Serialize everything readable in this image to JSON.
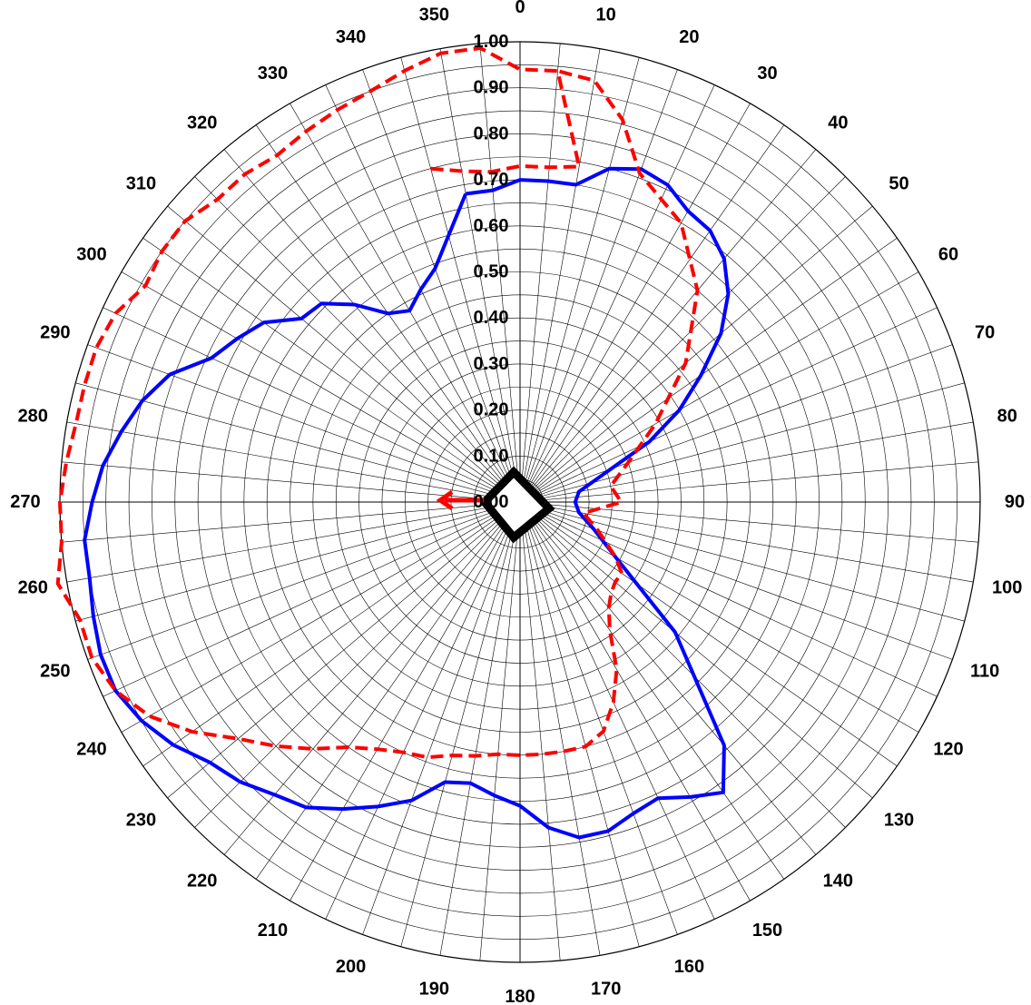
{
  "chart_data": {
    "type": "polar-line",
    "direction": "clockwise",
    "zero_angle": "top",
    "angle_step": 5,
    "angle_labels": [
      "0",
      "10",
      "20",
      "30",
      "40",
      "50",
      "60",
      "70",
      "80",
      "90",
      "100",
      "110",
      "120",
      "130",
      "140",
      "150",
      "160",
      "170",
      "180",
      "190",
      "200",
      "210",
      "220",
      "230",
      "240",
      "250",
      "260",
      "270",
      "280",
      "290",
      "300",
      "310",
      "320",
      "330",
      "340",
      "350"
    ],
    "radial_range": [
      0,
      1.0
    ],
    "radial_ticks": [
      "0.00",
      "0.10",
      "0.20",
      "0.30",
      "0.40",
      "0.50",
      "0.60",
      "0.70",
      "0.80",
      "0.90",
      "1.00"
    ],
    "grid": true,
    "series": [
      {
        "color": "#0000ff",
        "style": "solid",
        "points": [
          {
            "angle": 350,
            "r": 0.68
          },
          {
            "angle": 355,
            "r": 0.68
          },
          {
            "angle": 0,
            "r": 0.7
          },
          {
            "angle": 5,
            "r": 0.7
          },
          {
            "angle": 10,
            "r": 0.7
          },
          {
            "angle": 15,
            "r": 0.75
          },
          {
            "angle": 20,
            "r": 0.77
          },
          {
            "angle": 25,
            "r": 0.76
          },
          {
            "angle": 30,
            "r": 0.73
          },
          {
            "angle": 35,
            "r": 0.72
          },
          {
            "angle": 40,
            "r": 0.69
          },
          {
            "angle": 45,
            "r": 0.64
          },
          {
            "angle": 50,
            "r": 0.57
          },
          {
            "angle": 55,
            "r": 0.48
          },
          {
            "angle": 60,
            "r": 0.4
          },
          {
            "angle": 65,
            "r": 0.31
          },
          {
            "angle": 70,
            "r": 0.21
          },
          {
            "angle": 80,
            "r": 0.13
          },
          {
            "angle": 90,
            "r": 0.12
          },
          {
            "angle": 100,
            "r": 0.13
          },
          {
            "angle": 110,
            "r": 0.17
          },
          {
            "angle": 120,
            "r": 0.24
          },
          {
            "angle": 130,
            "r": 0.44
          },
          {
            "angle": 140,
            "r": 0.69
          },
          {
            "angle": 145,
            "r": 0.77
          },
          {
            "angle": 150,
            "r": 0.74
          },
          {
            "angle": 155,
            "r": 0.71
          },
          {
            "angle": 160,
            "r": 0.72
          },
          {
            "angle": 165,
            "r": 0.74
          },
          {
            "angle": 170,
            "r": 0.74
          },
          {
            "angle": 175,
            "r": 0.71
          },
          {
            "angle": 180,
            "r": 0.66
          },
          {
            "angle": 185,
            "r": 0.64
          },
          {
            "angle": 190,
            "r": 0.62
          },
          {
            "angle": 195,
            "r": 0.63
          },
          {
            "angle": 200,
            "r": 0.69
          },
          {
            "angle": 205,
            "r": 0.73
          },
          {
            "angle": 210,
            "r": 0.77
          },
          {
            "angle": 215,
            "r": 0.81
          },
          {
            "angle": 220,
            "r": 0.83
          },
          {
            "angle": 225,
            "r": 0.86
          },
          {
            "angle": 230,
            "r": 0.88
          },
          {
            "angle": 235,
            "r": 0.92
          },
          {
            "angle": 240,
            "r": 0.95
          },
          {
            "angle": 245,
            "r": 0.97
          },
          {
            "angle": 250,
            "r": 0.97
          },
          {
            "angle": 255,
            "r": 0.96
          },
          {
            "angle": 260,
            "r": 0.95
          },
          {
            "angle": 265,
            "r": 0.95
          },
          {
            "angle": 270,
            "r": 0.93
          },
          {
            "angle": 275,
            "r": 0.91
          },
          {
            "angle": 280,
            "r": 0.88
          },
          {
            "angle": 285,
            "r": 0.85
          },
          {
            "angle": 290,
            "r": 0.81
          },
          {
            "angle": 295,
            "r": 0.74
          },
          {
            "angle": 300,
            "r": 0.71
          },
          {
            "angle": 305,
            "r": 0.68
          },
          {
            "angle": 310,
            "r": 0.62
          },
          {
            "angle": 315,
            "r": 0.61
          },
          {
            "angle": 320,
            "r": 0.56
          },
          {
            "angle": 325,
            "r": 0.5
          },
          {
            "angle": 330,
            "r": 0.48
          },
          {
            "angle": 335,
            "r": 0.51
          },
          {
            "angle": 340,
            "r": 0.54
          },
          {
            "angle": 345,
            "r": 0.6
          },
          {
            "angle": 350,
            "r": 0.68
          }
        ]
      },
      {
        "color": "#ff0000",
        "style": "dashed",
        "points": [
          {
            "angle": 345,
            "r": 0.75
          },
          {
            "angle": 350,
            "r": 0.73
          },
          {
            "angle": 355,
            "r": 0.72
          },
          {
            "angle": 0,
            "r": 0.73
          },
          {
            "angle": 5,
            "r": 0.73
          },
          {
            "angle": 10,
            "r": 0.74
          },
          {
            "angle": 5,
            "r": 0.94
          },
          {
            "angle": 0,
            "r": 0.94
          },
          {
            "angle": 355,
            "r": 0.99
          },
          {
            "angle": 350,
            "r": 0.99
          },
          {
            "angle": 345,
            "r": 0.97
          },
          {
            "angle": 340,
            "r": 0.95
          },
          {
            "angle": 335,
            "r": 0.94
          },
          {
            "angle": 330,
            "r": 0.93
          },
          {
            "angle": 325,
            "r": 0.92
          },
          {
            "angle": 320,
            "r": 0.93
          },
          {
            "angle": 315,
            "r": 0.93
          },
          {
            "angle": 310,
            "r": 0.95
          },
          {
            "angle": 305,
            "r": 0.95
          },
          {
            "angle": 300,
            "r": 0.94
          },
          {
            "angle": 295,
            "r": 0.97
          },
          {
            "angle": 290,
            "r": 0.98
          },
          {
            "angle": 285,
            "r": 0.98
          },
          {
            "angle": 280,
            "r": 0.98
          },
          {
            "angle": 275,
            "r": 0.99
          },
          {
            "angle": 270,
            "r": 1.0
          },
          {
            "angle": 265,
            "r": 1.0
          },
          {
            "angle": 260,
            "r": 1.02
          },
          {
            "angle": 255,
            "r": 0.99
          },
          {
            "angle": 250,
            "r": 0.99
          },
          {
            "angle": 245,
            "r": 0.97
          },
          {
            "angle": 240,
            "r": 0.93
          },
          {
            "angle": 235,
            "r": 0.87
          },
          {
            "angle": 230,
            "r": 0.8
          },
          {
            "angle": 225,
            "r": 0.75
          },
          {
            "angle": 220,
            "r": 0.7
          },
          {
            "angle": 215,
            "r": 0.65
          },
          {
            "angle": 210,
            "r": 0.62
          },
          {
            "angle": 205,
            "r": 0.6
          },
          {
            "angle": 200,
            "r": 0.59
          },
          {
            "angle": 195,
            "r": 0.57
          },
          {
            "angle": 190,
            "r": 0.56
          },
          {
            "angle": 185,
            "r": 0.55
          },
          {
            "angle": 180,
            "r": 0.55
          },
          {
            "angle": 175,
            "r": 0.55
          },
          {
            "angle": 170,
            "r": 0.55
          },
          {
            "angle": 165,
            "r": 0.55
          },
          {
            "angle": 160,
            "r": 0.53
          },
          {
            "angle": 155,
            "r": 0.48
          },
          {
            "angle": 150,
            "r": 0.42
          },
          {
            "angle": 145,
            "r": 0.34
          },
          {
            "angle": 140,
            "r": 0.3
          },
          {
            "angle": 135,
            "r": 0.28
          },
          {
            "angle": 130,
            "r": 0.27
          },
          {
            "angle": 125,
            "r": 0.27
          },
          {
            "angle": 120,
            "r": 0.24
          },
          {
            "angle": 110,
            "r": 0.18
          },
          {
            "angle": 100,
            "r": 0.14
          },
          {
            "angle": 90,
            "r": 0.22
          },
          {
            "angle": 80,
            "r": 0.2
          },
          {
            "angle": 70,
            "r": 0.25
          },
          {
            "angle": 60,
            "r": 0.34
          },
          {
            "angle": 50,
            "r": 0.47
          },
          {
            "angle": 40,
            "r": 0.6
          },
          {
            "angle": 30,
            "r": 0.7
          },
          {
            "angle": 20,
            "r": 0.76
          },
          {
            "angle": 15,
            "r": 0.86
          },
          {
            "angle": 10,
            "r": 0.93
          },
          {
            "angle": 5,
            "r": 0.94
          }
        ]
      }
    ]
  },
  "colors": {
    "grid": "#000000",
    "blue_series": "#0000ff",
    "red_series": "#ff0000",
    "center_marker": "#000000",
    "arrow": "#ff0000"
  },
  "icons": {
    "center_marker": "diamond-outline",
    "direction_arrow": "arrow-left"
  }
}
